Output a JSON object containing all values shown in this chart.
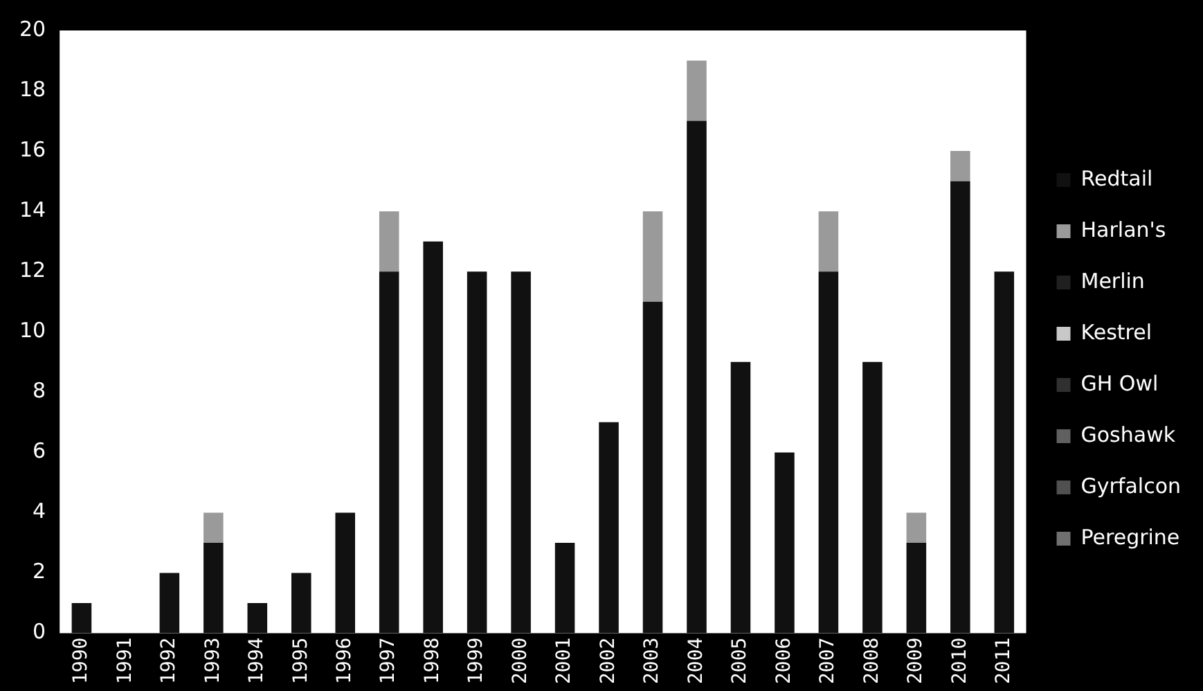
{
  "chart_data": {
    "type": "bar",
    "stacked": true,
    "categories": [
      "1990",
      "1991",
      "1992",
      "1993",
      "1994",
      "1995",
      "1996",
      "1997",
      "1998",
      "1999",
      "2000",
      "2001",
      "2002",
      "2003",
      "2004",
      "2005",
      "2006",
      "2007",
      "2008",
      "2009",
      "2010",
      "2011"
    ],
    "series": [
      {
        "name": "Redtail",
        "color": "#111111",
        "values": [
          1,
          0,
          2,
          3,
          1,
          2,
          4,
          12,
          13,
          12,
          12,
          3,
          7,
          11,
          17,
          9,
          6,
          12,
          9,
          3,
          15,
          12
        ]
      },
      {
        "name": "Harlan's",
        "color": "#9a9a9a",
        "values": [
          0,
          0,
          0,
          1,
          0,
          0,
          0,
          2,
          0,
          0,
          0,
          0,
          0,
          3,
          2,
          0,
          0,
          2,
          0,
          1,
          1,
          0
        ]
      },
      {
        "name": "Merlin",
        "color": "#202020",
        "values": [
          0,
          0,
          0,
          0,
          0,
          0,
          0,
          0,
          0,
          0,
          0,
          0,
          0,
          0,
          0,
          0,
          0,
          0,
          0,
          0,
          0,
          0
        ]
      },
      {
        "name": "Kestrel",
        "color": "#c8c8c8",
        "values": [
          0,
          0,
          0,
          0,
          0,
          0,
          0,
          0,
          0,
          0,
          0,
          0,
          0,
          0,
          0,
          0,
          0,
          0,
          0,
          0,
          0,
          0
        ]
      },
      {
        "name": "GH Owl",
        "color": "#303030",
        "values": [
          0,
          0,
          0,
          0,
          0,
          0,
          0,
          0,
          0,
          0,
          0,
          0,
          0,
          0,
          0,
          0,
          0,
          0,
          0,
          0,
          0,
          0
        ]
      },
      {
        "name": "Goshawk",
        "color": "#606060",
        "values": [
          0,
          0,
          0,
          0,
          0,
          0,
          0,
          0,
          0,
          0,
          0,
          0,
          0,
          0,
          0,
          0,
          0,
          0,
          0,
          0,
          0,
          0
        ]
      },
      {
        "name": "Gyrfalcon",
        "color": "#505050",
        "values": [
          0,
          0,
          0,
          0,
          0,
          0,
          0,
          0,
          0,
          0,
          0,
          0,
          0,
          0,
          0,
          0,
          0,
          0,
          0,
          0,
          0,
          0
        ]
      },
      {
        "name": "Peregrine",
        "color": "#707070",
        "values": [
          0,
          0,
          0,
          0,
          0,
          0,
          0,
          0,
          0,
          0,
          0,
          0,
          0,
          0,
          0,
          0,
          0,
          0,
          0,
          0,
          0,
          0
        ]
      }
    ],
    "ylim": [
      0,
      20
    ],
    "yticks": [
      0,
      2,
      4,
      6,
      8,
      10,
      12,
      14,
      16,
      18,
      20
    ],
    "grid": false,
    "legend": "right"
  }
}
